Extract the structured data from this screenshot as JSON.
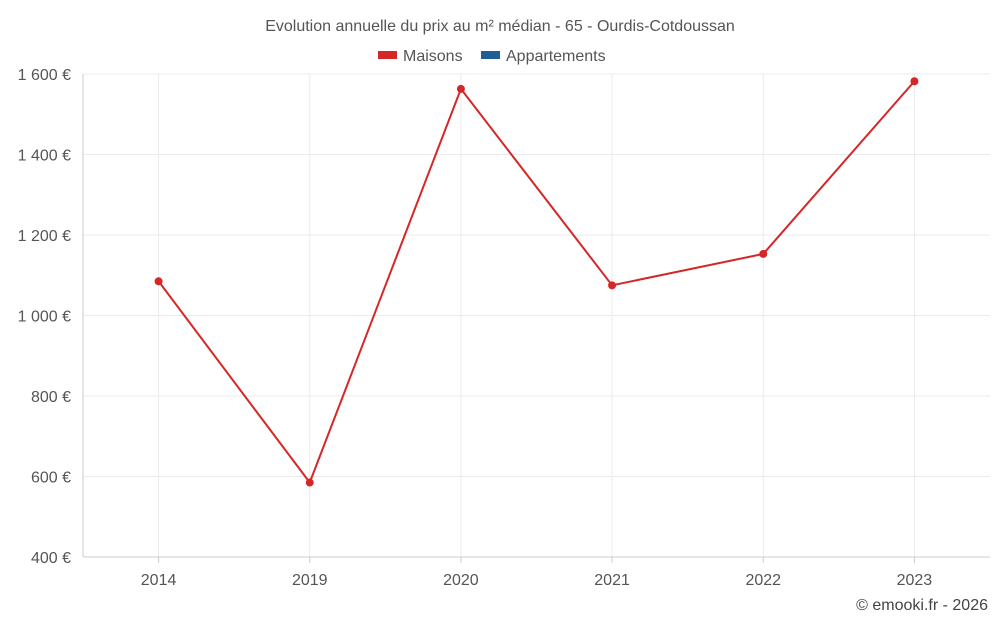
{
  "chart_data": {
    "type": "line",
    "title": "Evolution annuelle du prix au m² médian - 65 - Ourdis-Cotdoussan",
    "categories": [
      "2014",
      "2019",
      "2020",
      "2021",
      "2022",
      "2023"
    ],
    "series": [
      {
        "name": "Maisons",
        "color": "#d62728",
        "values": [
          1085,
          585,
          1563,
          1075,
          1153,
          1582
        ]
      },
      {
        "name": "Appartements",
        "color": "#1f5f96",
        "values": [
          null,
          null,
          null,
          null,
          null,
          null
        ]
      }
    ],
    "y_ticks": [
      400,
      600,
      800,
      1000,
      1200,
      1400,
      1600
    ],
    "y_tick_labels": [
      "400 €",
      "600 €",
      "800 €",
      "1 000 €",
      "1 200 €",
      "1 400 €",
      "1 600 €"
    ],
    "ylim": [
      400,
      1600
    ],
    "xlabel": "",
    "ylabel": "",
    "legend_position": "top-center",
    "grid": true
  },
  "credit": "© emooki.fr - 2026"
}
